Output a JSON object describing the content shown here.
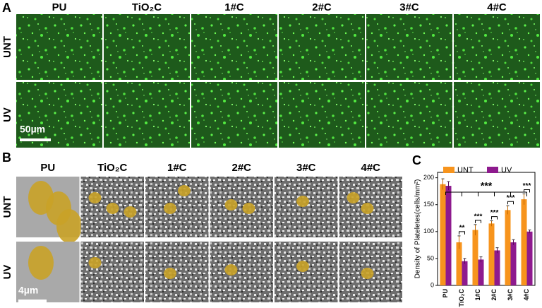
{
  "panel_a": {
    "label": "A",
    "columns": [
      "PU",
      "TiO₂C",
      "1#C",
      "2#C",
      "3#C",
      "4#C"
    ],
    "rows": [
      "UNT",
      "UV"
    ],
    "scale_bar": "50µm"
  },
  "panel_b": {
    "label": "B",
    "columns": [
      "PU",
      "TiO₂C",
      "1#C",
      "2#C",
      "3#C",
      "4#C"
    ],
    "rows": [
      "UNT",
      "UV"
    ],
    "scale_bar": "4µm"
  },
  "panel_c": {
    "label": "C"
  },
  "chart_data": {
    "type": "bar",
    "ylabel": "Density of Plateletes(cells/mm²)",
    "categories": [
      "PU",
      "TiO₂C",
      "1#C",
      "2#C",
      "3#C",
      "4#C"
    ],
    "series": [
      {
        "name": "UNT",
        "color": "#f7941d",
        "values": [
          188,
          80,
          103,
          115,
          140,
          160
        ],
        "errors": [
          10,
          12,
          10,
          5,
          8,
          10
        ]
      },
      {
        "name": "UV",
        "color": "#8e1a8e",
        "values": [
          185,
          45,
          48,
          65,
          80,
          100
        ],
        "errors": [
          8,
          5,
          5,
          5,
          5,
          3
        ]
      }
    ],
    "ylim": [
      0,
      210
    ],
    "yticks": [
      0,
      50,
      100,
      150,
      200
    ],
    "legend": "top",
    "significance": [
      null,
      "**",
      "***",
      "***",
      "***",
      "***"
    ],
    "overall_significance": "***"
  }
}
